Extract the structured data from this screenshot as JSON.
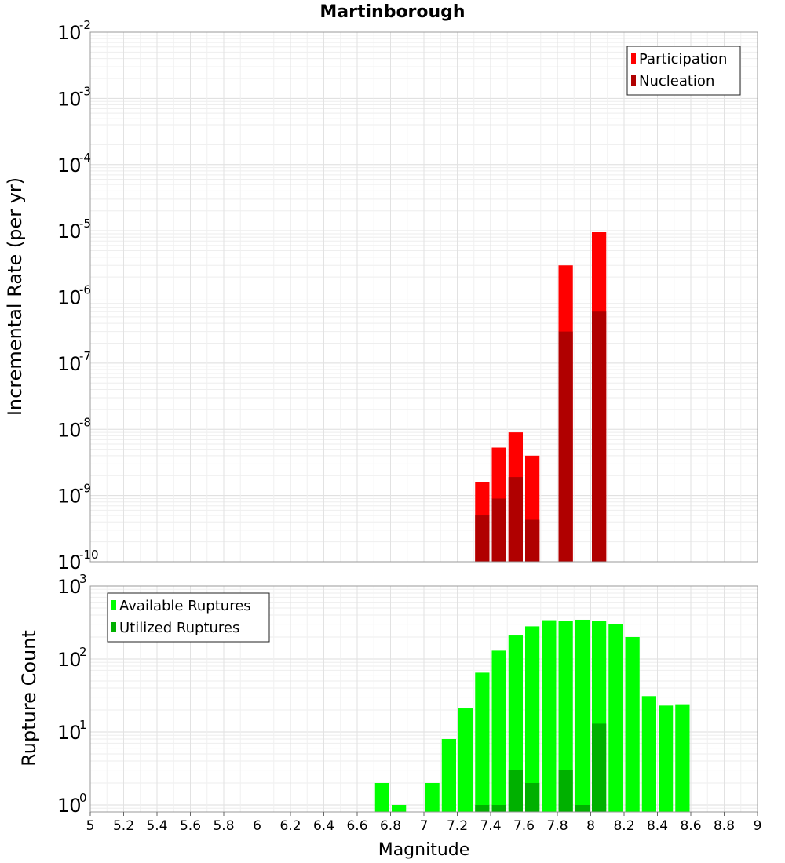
{
  "chart_data": [
    {
      "type": "bar",
      "title": "Martinborough",
      "xlabel": "",
      "ylabel": "Incremental Rate (per yr)",
      "yscale": "log",
      "ylim": [
        1e-10,
        0.01
      ],
      "xlim": [
        5,
        9
      ],
      "legend_position": "top-right",
      "series": [
        {
          "name": "Participation",
          "color": "#ff0000",
          "x": [
            7.35,
            7.45,
            7.55,
            7.65,
            7.85,
            8.05
          ],
          "values": [
            1.6e-09,
            5.3e-09,
            9e-09,
            4e-09,
            3e-06,
            9.5e-06
          ]
        },
        {
          "name": "Nucleation",
          "color": "#b00000",
          "x": [
            7.35,
            7.45,
            7.55,
            7.65,
            7.85,
            8.05
          ],
          "values": [
            5e-10,
            9e-10,
            1.9e-09,
            4.3e-10,
            3e-07,
            6e-07
          ]
        }
      ]
    },
    {
      "type": "bar",
      "title": "",
      "xlabel": "Magnitude",
      "ylabel": "Rupture Count",
      "yscale": "log",
      "ylim": [
        0.8,
        1000
      ],
      "xlim": [
        5,
        9
      ],
      "legend_position": "top-left",
      "x_ticks": [
        "5",
        "5.2",
        "5.4",
        "5.6",
        "5.8",
        "6",
        "6.2",
        "6.4",
        "6.6",
        "6.8",
        "7",
        "7.2",
        "7.4",
        "7.6",
        "7.8",
        "8",
        "8.2",
        "8.4",
        "8.6",
        "8.8",
        "9"
      ],
      "series": [
        {
          "name": "Available Ruptures",
          "color": "#00ff00",
          "x": [
            6.75,
            6.85,
            7.05,
            7.15,
            7.25,
            7.35,
            7.45,
            7.55,
            7.65,
            7.75,
            7.85,
            7.95,
            8.05,
            8.15,
            8.25,
            8.35,
            8.45,
            8.55
          ],
          "values": [
            2,
            1,
            2,
            8,
            21,
            65,
            130,
            210,
            280,
            340,
            335,
            345,
            330,
            300,
            200,
            31,
            23,
            24
          ]
        },
        {
          "name": "Utilized Ruptures",
          "color": "#00b000",
          "x": [
            7.35,
            7.45,
            7.55,
            7.65,
            7.85,
            7.95,
            8.05
          ],
          "values": [
            1,
            1,
            3,
            2,
            3,
            1,
            13
          ]
        }
      ]
    }
  ]
}
